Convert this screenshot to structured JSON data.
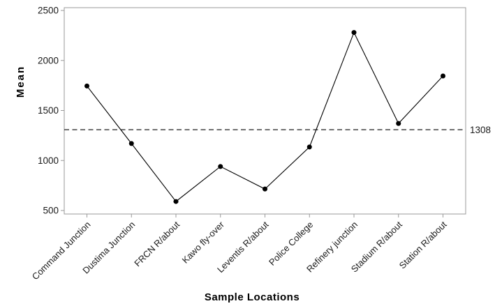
{
  "chart_data": {
    "type": "line",
    "title": "",
    "xlabel": "Sample Locations",
    "ylabel": "Mean",
    "categories": [
      "Command Junction",
      "Dustima Junction",
      "FRCN R/about",
      "Kawo fly-over",
      "Leventis R/about",
      "Police College",
      "Refinery junction",
      "Stadium R/about",
      "Station R/about"
    ],
    "values": [
      1745,
      1170,
      590,
      940,
      715,
      1135,
      2280,
      1370,
      1845
    ],
    "yticks": [
      500,
      1000,
      1500,
      2000,
      2500
    ],
    "ylim": [
      500,
      2500
    ],
    "x_tick_label_rotation": -45,
    "grid": false,
    "legend": false,
    "reference_line": {
      "value": 1308,
      "label": "1308",
      "style": "dashed"
    },
    "colors": {
      "series_line": "#000000",
      "marker": "#000000",
      "reference_line": "#000000",
      "frame": "#999999",
      "tick": "#999999",
      "tick_label": "#1a1a1a",
      "axis_title": "#000000",
      "background": "#ffffff"
    },
    "marker_shape": "filled-circle"
  }
}
